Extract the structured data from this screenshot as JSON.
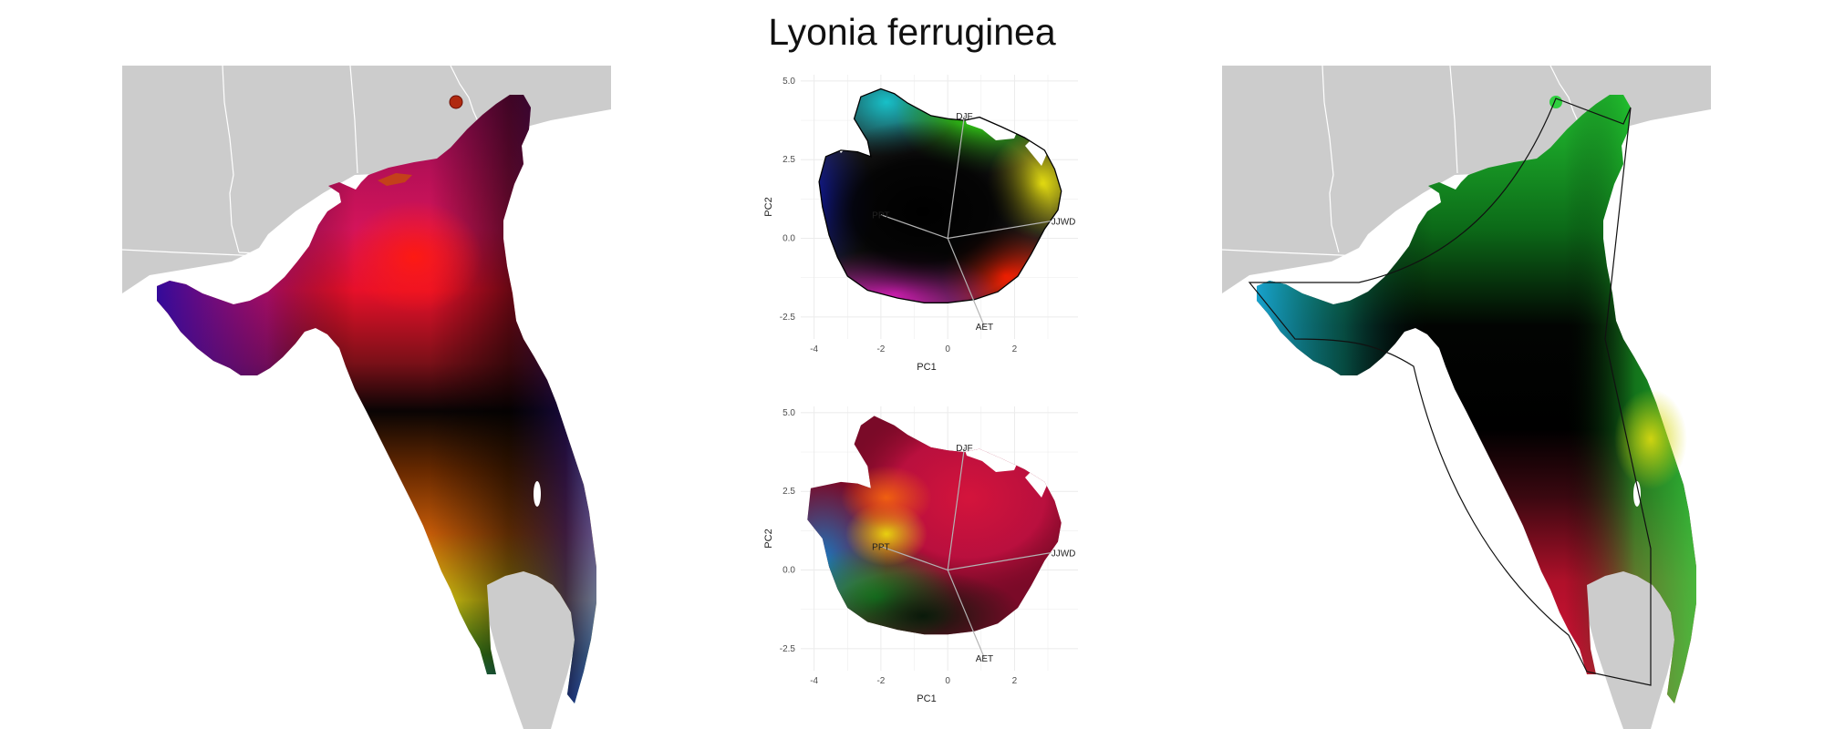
{
  "title": "Lyonia ferruginea",
  "colors": {
    "land": "#cccccc",
    "border": "#ffffff",
    "pca_outline": "#000000",
    "vector": "#b3b3b3",
    "grid": "#ebebeb"
  },
  "maps": [
    {
      "name": "left-map",
      "coloring": "pca-rgb continuous"
    },
    {
      "name": "right-map",
      "coloring": "pca-rgb smoothed with hull outline"
    }
  ],
  "chart_data": [
    {
      "type": "scatter",
      "name": "pca-top",
      "xlabel": "PC1",
      "ylabel": "PC2",
      "xlim": [
        -4.4,
        3.9
      ],
      "ylim": [
        -3.2,
        5.2
      ],
      "xticks": [
        -4,
        -2,
        0,
        2
      ],
      "xtick_labels": [
        "-4",
        "-2",
        "0",
        "2"
      ],
      "yticks": [
        -2.5,
        0.0,
        2.5,
        5.0
      ],
      "ytick_labels": [
        "-2.5",
        "0.0",
        "2.5",
        "5.0"
      ],
      "grid": true,
      "vectors": [
        {
          "label": "DJF",
          "x": 0.5,
          "y": 3.9
        },
        {
          "label": "PPT",
          "x": -2.0,
          "y": 0.75
        },
        {
          "label": "JJWD",
          "x": 3.1,
          "y": 0.55
        },
        {
          "label": "AET",
          "x": 1.1,
          "y": -2.8
        }
      ],
      "outline": [
        [
          -2.0,
          4.75
        ],
        [
          -1.6,
          4.6
        ],
        [
          -1.2,
          4.3
        ],
        [
          -0.5,
          3.9
        ],
        [
          0.0,
          3.8
        ],
        [
          0.5,
          3.75
        ],
        [
          0.95,
          3.85
        ],
        [
          1.6,
          3.55
        ],
        [
          2.3,
          3.2
        ],
        [
          2.9,
          2.8
        ],
        [
          3.2,
          2.2
        ],
        [
          3.4,
          1.5
        ],
        [
          3.3,
          0.9
        ],
        [
          2.9,
          0.3
        ],
        [
          2.5,
          -0.5
        ],
        [
          2.1,
          -1.2
        ],
        [
          1.5,
          -1.7
        ],
        [
          0.8,
          -1.95
        ],
        [
          0.0,
          -2.05
        ],
        [
          -0.7,
          -2.05
        ],
        [
          -1.5,
          -1.9
        ],
        [
          -2.4,
          -1.65
        ],
        [
          -3.0,
          -1.2
        ],
        [
          -3.3,
          -0.6
        ],
        [
          -3.55,
          0.1
        ],
        [
          -3.75,
          1.0
        ],
        [
          -3.85,
          1.8
        ],
        [
          -3.65,
          2.6
        ],
        [
          -3.2,
          2.8
        ],
        [
          -2.7,
          2.75
        ],
        [
          -2.3,
          2.6
        ],
        [
          -2.4,
          3.1
        ],
        [
          -2.8,
          3.8
        ],
        [
          -2.6,
          4.5
        ]
      ]
    },
    {
      "type": "scatter",
      "name": "pca-bottom",
      "xlabel": "PC1",
      "ylabel": "PC2",
      "xlim": [
        -4.4,
        3.9
      ],
      "ylim": [
        -3.2,
        5.2
      ],
      "xticks": [
        -4,
        -2,
        0,
        2
      ],
      "xtick_labels": [
        "-4",
        "-2",
        "0",
        "2"
      ],
      "yticks": [
        -2.5,
        0.0,
        2.5,
        5.0
      ],
      "ytick_labels": [
        "-2.5",
        "0.0",
        "2.5",
        "5.0"
      ],
      "grid": true,
      "vectors": [
        {
          "label": "DJF",
          "x": 0.5,
          "y": 3.9
        },
        {
          "label": "PPT",
          "x": -2.0,
          "y": 0.75
        },
        {
          "label": "JJWD",
          "x": 3.1,
          "y": 0.55
        },
        {
          "label": "AET",
          "x": 1.1,
          "y": -2.8
        }
      ],
      "outline": [
        [
          -2.2,
          4.9
        ],
        [
          -1.6,
          4.6
        ],
        [
          -1.2,
          4.3
        ],
        [
          -0.5,
          3.9
        ],
        [
          0.0,
          3.8
        ],
        [
          0.5,
          3.75
        ],
        [
          0.95,
          3.85
        ],
        [
          1.6,
          3.55
        ],
        [
          2.3,
          3.2
        ],
        [
          2.9,
          2.8
        ],
        [
          3.2,
          2.2
        ],
        [
          3.4,
          1.5
        ],
        [
          3.3,
          0.9
        ],
        [
          2.9,
          0.3
        ],
        [
          2.5,
          -0.5
        ],
        [
          2.1,
          -1.2
        ],
        [
          1.5,
          -1.7
        ],
        [
          0.8,
          -1.95
        ],
        [
          0.0,
          -2.05
        ],
        [
          -0.7,
          -2.05
        ],
        [
          -1.5,
          -1.9
        ],
        [
          -2.4,
          -1.65
        ],
        [
          -3.0,
          -1.2
        ],
        [
          -3.3,
          -0.6
        ],
        [
          -3.55,
          0.1
        ],
        [
          -3.75,
          1.0
        ],
        [
          -4.2,
          1.6
        ],
        [
          -4.1,
          2.6
        ],
        [
          -3.2,
          2.8
        ],
        [
          -2.7,
          2.75
        ],
        [
          -2.3,
          2.6
        ],
        [
          -2.4,
          3.3
        ],
        [
          -2.8,
          4.0
        ],
        [
          -2.6,
          4.6
        ]
      ]
    }
  ]
}
